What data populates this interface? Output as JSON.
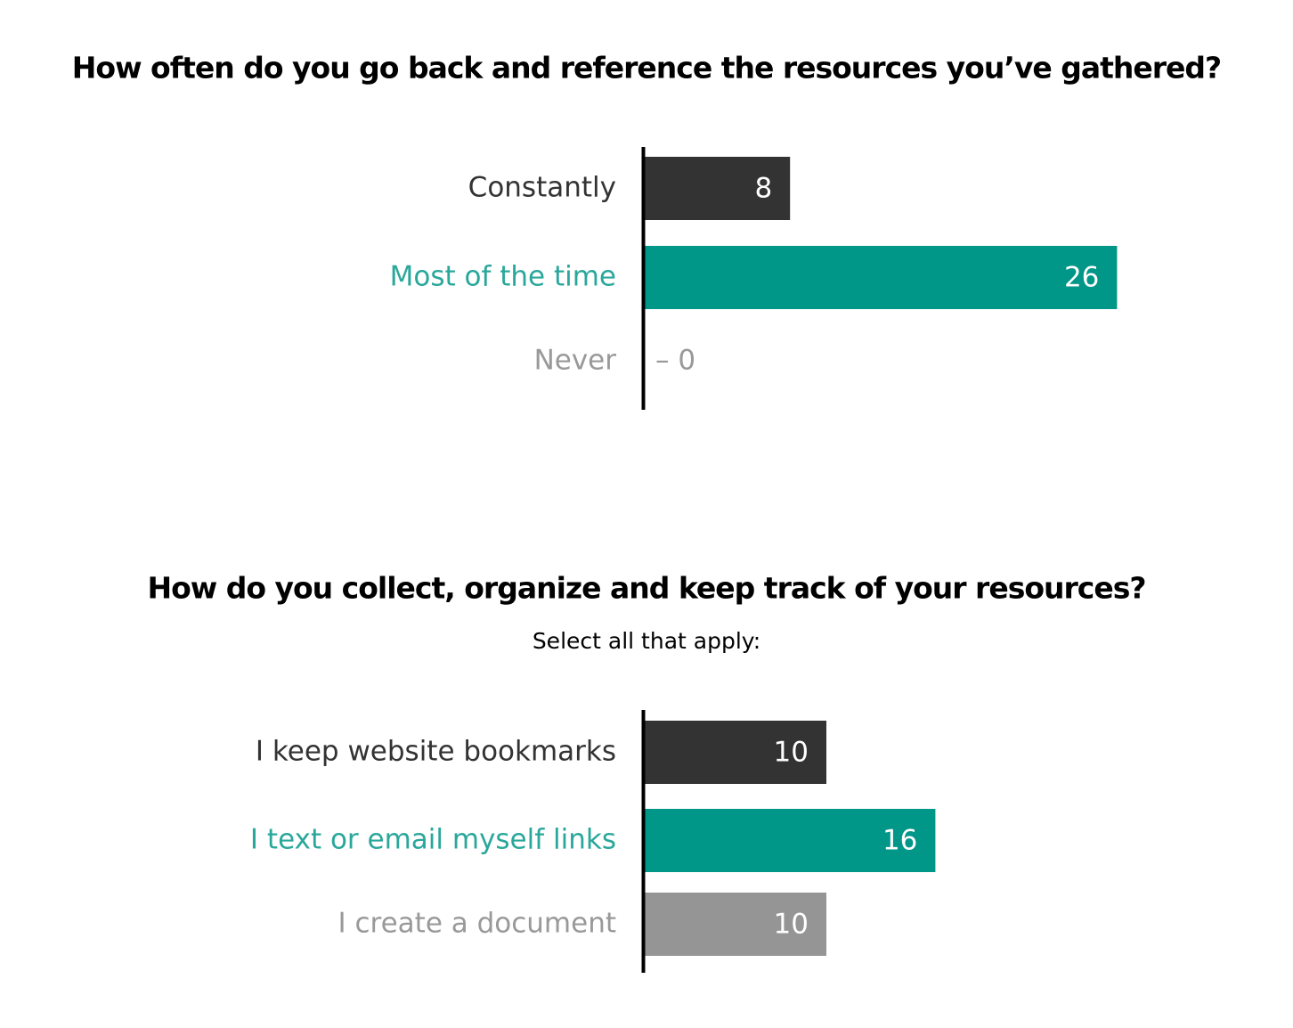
{
  "chart_data": [
    {
      "type": "bar",
      "orientation": "horizontal",
      "title": "How often do you go back and reference the resources you’ve gathered?",
      "categories": [
        "Constantly",
        "Most of the time",
        "Never"
      ],
      "values": [
        8,
        26,
        0
      ],
      "value_labels": [
        "8",
        "26",
        "– 0"
      ],
      "colors": [
        "#333333",
        "#009688",
        "#959595"
      ]
    },
    {
      "type": "bar",
      "orientation": "horizontal",
      "title": "How do you collect, organize and keep track of your resources?",
      "subtitle": "Select all that apply:",
      "categories": [
        "I keep website bookmarks",
        "I text or email myself links",
        "I create a document"
      ],
      "values": [
        10,
        16,
        10
      ],
      "colors": [
        "#333333",
        "#009688",
        "#959595"
      ]
    }
  ]
}
